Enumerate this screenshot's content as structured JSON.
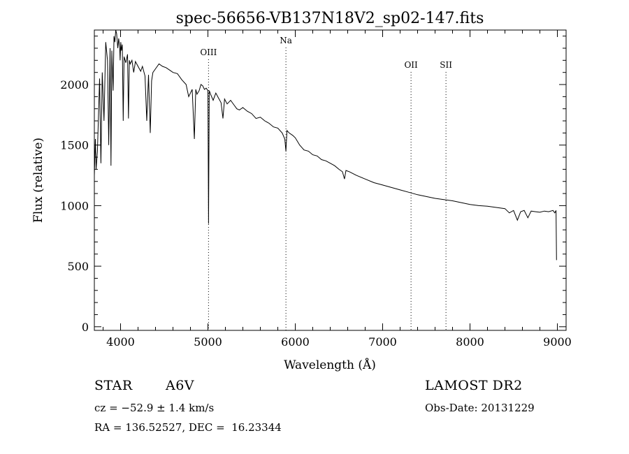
{
  "chart_data": {
    "type": "line",
    "title": "spec-56656-VB137N18V2_sp02-147.fits",
    "xlabel": "Wavelength (Å)",
    "ylabel": "Flux (relative)",
    "xlim": [
      3700,
      9100
    ],
    "ylim": [
      -30,
      2450
    ],
    "x_ticks": [
      4000,
      5000,
      6000,
      7000,
      8000,
      9000
    ],
    "y_ticks": [
      0,
      500,
      1000,
      1500,
      2000
    ],
    "grid": false,
    "line_color": "#000000",
    "lines": [
      {
        "label": "OIII",
        "x": 5007
      },
      {
        "label": "Na",
        "x": 5893
      },
      {
        "label": "OII",
        "x": 7325
      },
      {
        "label": "SII",
        "x": 7725
      }
    ],
    "series": [
      {
        "x": [
          3700,
          3712,
          3720,
          3735,
          3760,
          3775,
          3790,
          3810,
          3830,
          3850,
          3865,
          3880,
          3890,
          3900,
          3915,
          3925,
          3935,
          3945,
          3955,
          3968,
          3978,
          3990,
          3995,
          4002,
          4010,
          4020,
          4030,
          4040,
          4060,
          4080,
          4090,
          4101,
          4110,
          4130,
          4150,
          4170,
          4200,
          4230,
          4250,
          4280,
          4300,
          4320,
          4340,
          4355,
          4370,
          4400,
          4440,
          4480,
          4520,
          4560,
          4600,
          4650,
          4700,
          4750,
          4780,
          4800,
          4820,
          4845,
          4861,
          4875,
          4900,
          4920,
          4940,
          4960,
          4980,
          5000,
          5007,
          5015,
          5030,
          5060,
          5090,
          5120,
          5150,
          5172,
          5190,
          5220,
          5260,
          5300,
          5330,
          5360,
          5400,
          5450,
          5500,
          5550,
          5600,
          5650,
          5700,
          5750,
          5800,
          5850,
          5880,
          5893,
          5905,
          5930,
          5970,
          6000,
          6050,
          6100,
          6150,
          6200,
          6250,
          6300,
          6350,
          6400,
          6450,
          6500,
          6540,
          6563,
          6580,
          6620,
          6700,
          6800,
          6900,
          7000,
          7100,
          7200,
          7300,
          7400,
          7500,
          7600,
          7700,
          7800,
          7900,
          8000,
          8100,
          8200,
          8300,
          8400,
          8450,
          8498,
          8542,
          8580,
          8620,
          8662,
          8700,
          8750,
          8800,
          8850,
          8900,
          8950,
          8970,
          8985,
          8990
        ],
        "y": [
          1250,
          1550,
          1300,
          1450,
          2050,
          1350,
          2100,
          1700,
          2350,
          2200,
          1500,
          2300,
          1330,
          2280,
          1950,
          2400,
          2350,
          2480,
          2420,
          2300,
          2380,
          2300,
          2200,
          2350,
          2280,
          2330,
          1700,
          2230,
          2180,
          2250,
          1720,
          2200,
          2170,
          2200,
          2100,
          2190,
          2150,
          2110,
          2150,
          2070,
          1700,
          2080,
          1600,
          2030,
          2100,
          2130,
          2170,
          2150,
          2140,
          2120,
          2100,
          2090,
          2040,
          2000,
          1900,
          1930,
          1960,
          1550,
          1960,
          1920,
          1950,
          2000,
          1990,
          1960,
          1970,
          1950,
          850,
          1950,
          1920,
          1870,
          1930,
          1890,
          1850,
          1720,
          1880,
          1840,
          1870,
          1830,
          1800,
          1790,
          1810,
          1780,
          1760,
          1720,
          1730,
          1700,
          1680,
          1650,
          1640,
          1600,
          1550,
          1450,
          1620,
          1600,
          1580,
          1560,
          1500,
          1460,
          1450,
          1420,
          1410,
          1380,
          1370,
          1350,
          1330,
          1300,
          1280,
          1220,
          1290,
          1280,
          1250,
          1220,
          1190,
          1170,
          1150,
          1130,
          1110,
          1090,
          1075,
          1060,
          1050,
          1040,
          1025,
          1010,
          1000,
          995,
          985,
          975,
          940,
          960,
          880,
          950,
          960,
          900,
          955,
          950,
          945,
          955,
          950,
          960,
          940,
          960,
          550
        ]
      }
    ]
  },
  "info": {
    "object_class": "STAR",
    "subclass": "A6V",
    "survey": "LAMOST DR2",
    "cz": "cz = −52.9 ± 1.4 km/s",
    "obs_date": "Obs-Date: 20131229",
    "radec": "RA = 136.52527, DEC =  16.23344"
  }
}
